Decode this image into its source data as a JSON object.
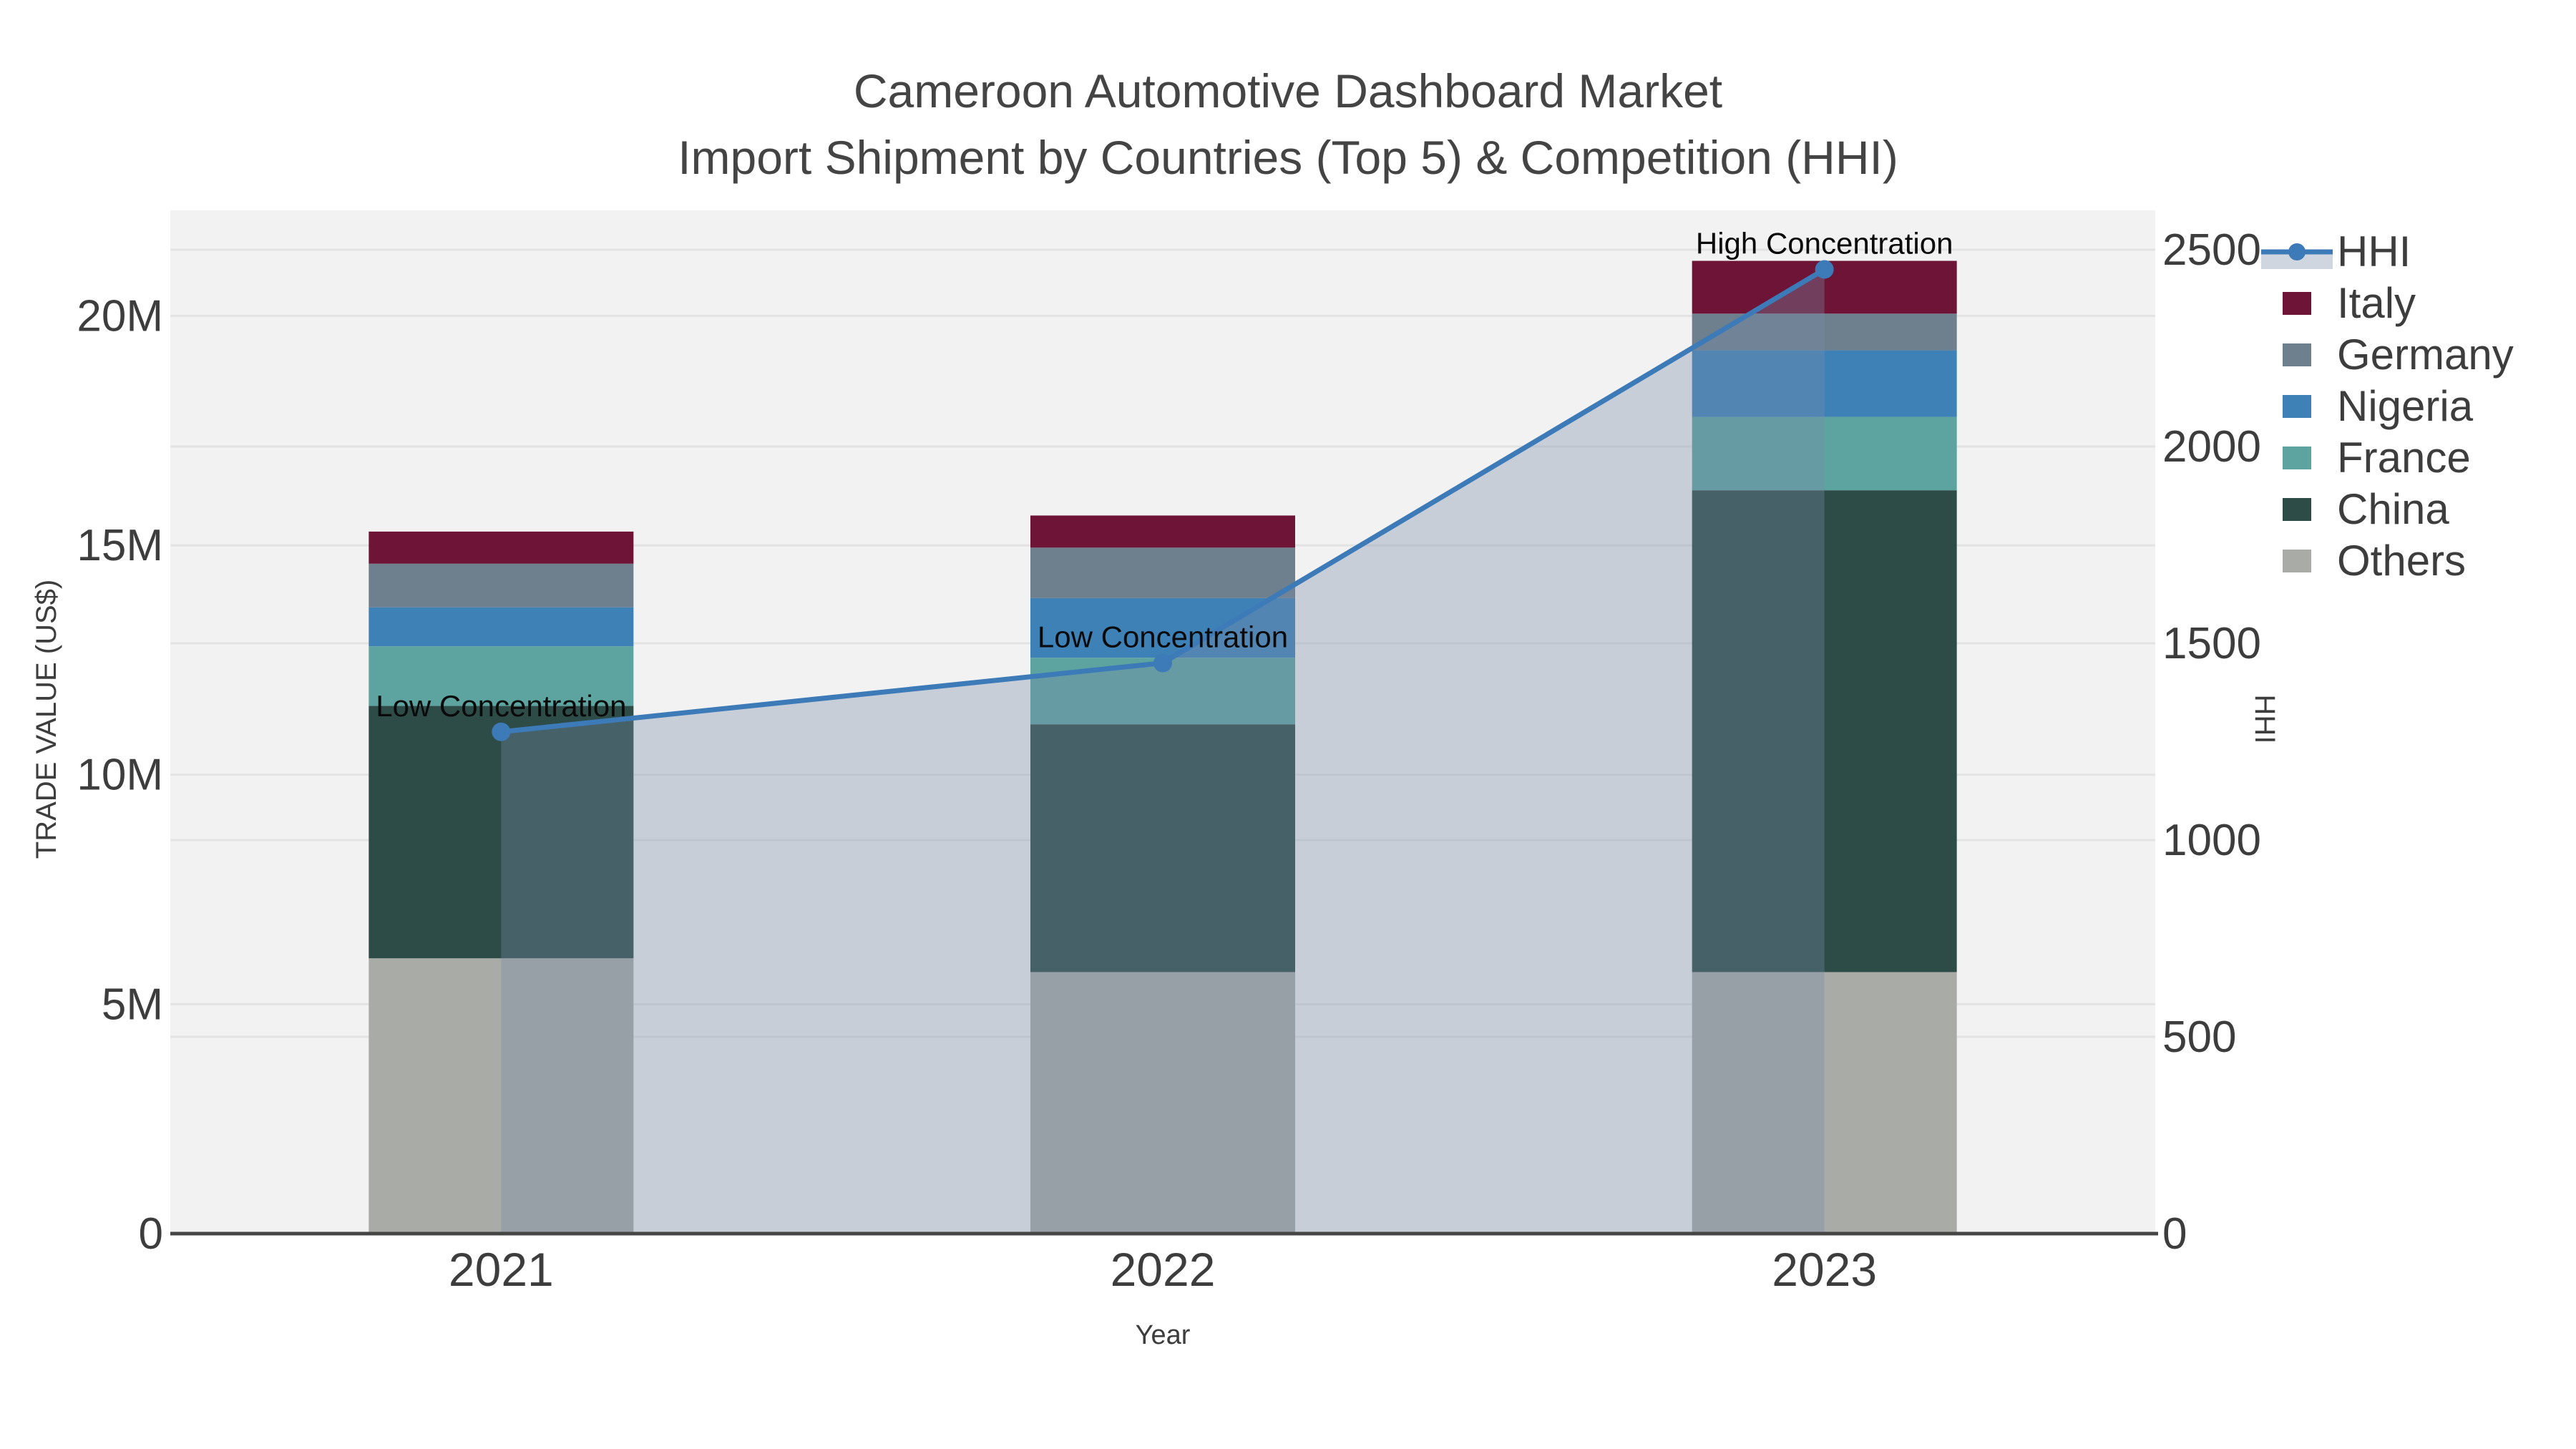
{
  "colors": {
    "background": "#ffffff",
    "plot_background": "#f2f2f2",
    "gridline": "#e3e3e3",
    "axis_line": "#454545",
    "tick_text": "#3d3d3d",
    "title_text": "#444444",
    "annotation_text": "#0a0a0a",
    "hhi_line": "#3d7ab8",
    "hhi_area_fill": "rgba(119,141,169,0.35)",
    "hhi_legend_band": "#cfd6df"
  },
  "chart_data": {
    "type": "bar",
    "variant": "stacked-bars-with-line-on-secondary-axis",
    "title": "Cameroon Automotive Dashboard Market",
    "subtitle": "Import Shipment by Countries (Top 5) & Competition (HHI)",
    "categories": [
      "2021",
      "2022",
      "2023"
    ],
    "xlabel": "Year",
    "ylabel": "TRADE VALUE (US$)",
    "ylabel_right": "HHI",
    "values_unit": "millions of US$",
    "ylim": [
      0,
      22.3
    ],
    "ylim_right": [
      0,
      2600
    ],
    "grid": true,
    "legend_position": "right-top-outside",
    "yticks": [
      {
        "v": 0,
        "label": "0"
      },
      {
        "v": 5,
        "label": "5M"
      },
      {
        "v": 10,
        "label": "10M"
      },
      {
        "v": 15,
        "label": "15M"
      },
      {
        "v": 20,
        "label": "20M"
      }
    ],
    "yticks_right": [
      {
        "v": 0,
        "label": "0"
      },
      {
        "v": 500,
        "label": "500"
      },
      {
        "v": 1000,
        "label": "1000"
      },
      {
        "v": 1500,
        "label": "1500"
      },
      {
        "v": 2000,
        "label": "2000"
      },
      {
        "v": 2500,
        "label": "2500"
      }
    ],
    "series": [
      {
        "name": "Others",
        "color": "#a9aba7",
        "values": [
          6.0,
          5.7,
          5.7
        ]
      },
      {
        "name": "China",
        "color": "#2d4b47",
        "values": [
          5.5,
          5.4,
          10.5
        ]
      },
      {
        "name": "France",
        "color": "#5da4a0",
        "values": [
          1.3,
          1.45,
          1.6
        ]
      },
      {
        "name": "Nigeria",
        "color": "#3e81b7",
        "values": [
          0.85,
          1.3,
          1.45
        ]
      },
      {
        "name": "Germany",
        "color": "#6e7f8e",
        "values": [
          0.95,
          1.1,
          0.8
        ]
      },
      {
        "name": "Italy",
        "color": "#6e1537",
        "values": [
          0.7,
          0.7,
          1.15
        ]
      }
    ],
    "line_series": {
      "name": "HHI",
      "axis": "right",
      "color": "#3d7ab8",
      "area_fill": "rgba(119,141,169,0.35)",
      "values": [
        1275,
        1450,
        2450
      ]
    },
    "annotations": [
      {
        "text": "Low Concentration",
        "category": "2021"
      },
      {
        "text": "Low Concentration",
        "category": "2022"
      },
      {
        "text": "High Concentration",
        "category": "2023"
      }
    ],
    "legend": [
      "HHI",
      "Italy",
      "Germany",
      "Nigeria",
      "France",
      "China",
      "Others"
    ]
  }
}
